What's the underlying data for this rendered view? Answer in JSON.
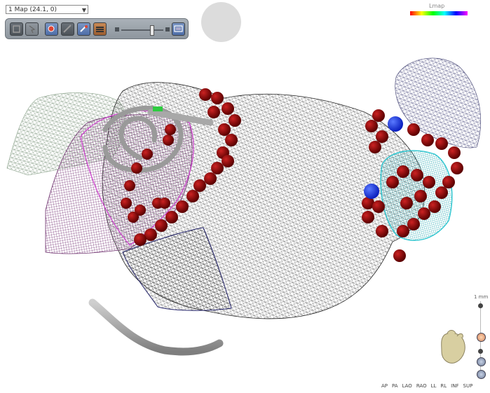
{
  "map_selector": {
    "value": "1 Map (24.1, 0)"
  },
  "toolbar": {
    "buttons": [
      {
        "name": "view-mode-icon",
        "on": false
      },
      {
        "name": "pointer-icon",
        "on": false
      },
      {
        "name": "tag-icon",
        "on": true
      },
      {
        "name": "ruler-icon",
        "on": false
      },
      {
        "name": "catheter-icon",
        "on": true
      },
      {
        "name": "histogram-icon",
        "on": false
      },
      {
        "name": "display-icon",
        "on": true
      }
    ],
    "transparency_level": 0.75
  },
  "legend": {
    "label": "Lmap"
  },
  "scale": {
    "label": "1 mm"
  },
  "colors": {
    "lesion": "#8b0000",
    "blue_tag": "#1a3fe6",
    "mesh": "#555555",
    "toolbar": "#959ca4"
  },
  "view_buttons": [
    "AP",
    "PA",
    "LAO",
    "RAO",
    "LL",
    "RL",
    "INF",
    "SUP"
  ]
}
